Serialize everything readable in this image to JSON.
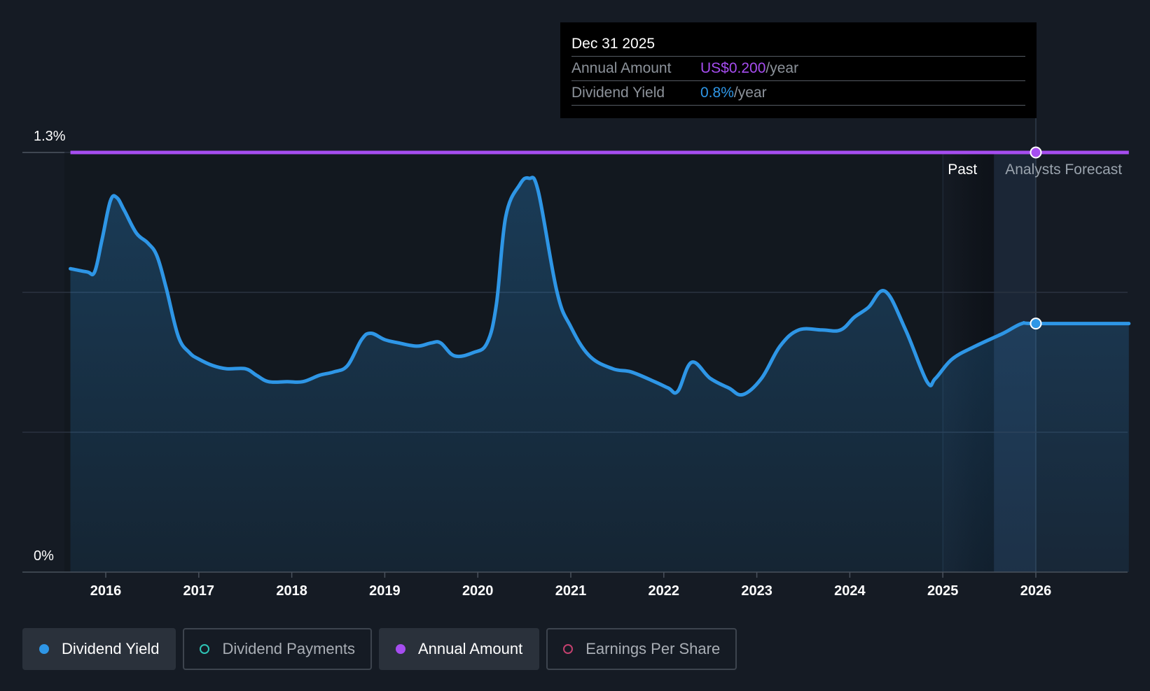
{
  "chart_data": {
    "type": "line",
    "y_axis": {
      "top_label": "1.3%",
      "bottom_label": "0%",
      "ylim": [
        0,
        1.3
      ]
    },
    "x_axis": {
      "tick_labels": [
        "2016",
        "2017",
        "2018",
        "2019",
        "2020",
        "2021",
        "2022",
        "2023",
        "2024",
        "2025",
        "2026"
      ]
    },
    "regions": {
      "past_label": "Past",
      "forecast_label": "Analysts Forecast",
      "forecast_start": 2025.55,
      "tooltip_date": 2026.0
    },
    "series": [
      {
        "name": "Dividend Yield",
        "color": "#2e96e6",
        "x": [
          2015.62,
          2015.8,
          2015.88,
          2015.96,
          2016.05,
          2016.12,
          2016.2,
          2016.33,
          2016.45,
          2016.55,
          2016.65,
          2016.78,
          2016.9,
          2017.0,
          2017.15,
          2017.3,
          2017.5,
          2017.62,
          2017.75,
          2017.95,
          2018.12,
          2018.3,
          2018.45,
          2018.6,
          2018.75,
          2018.85,
          2019.0,
          2019.15,
          2019.35,
          2019.5,
          2019.6,
          2019.75,
          2019.95,
          2020.1,
          2020.2,
          2020.3,
          2020.45,
          2020.55,
          2020.65,
          2020.85,
          2021.0,
          2021.2,
          2021.45,
          2021.65,
          2021.9,
          2022.05,
          2022.15,
          2022.3,
          2022.5,
          2022.7,
          2022.85,
          2023.05,
          2023.25,
          2023.45,
          2023.7,
          2023.9,
          2024.05,
          2024.2,
          2024.38,
          2024.6,
          2024.83,
          2024.92,
          2025.1,
          2025.35,
          2025.65,
          2025.85,
          2026.0,
          2027.0
        ],
        "values": [
          0.94,
          0.93,
          0.93,
          1.03,
          1.15,
          1.16,
          1.12,
          1.05,
          1.02,
          0.98,
          0.88,
          0.73,
          0.68,
          0.66,
          0.64,
          0.63,
          0.63,
          0.61,
          0.59,
          0.59,
          0.59,
          0.61,
          0.62,
          0.64,
          0.72,
          0.74,
          0.72,
          0.71,
          0.7,
          0.71,
          0.71,
          0.67,
          0.68,
          0.71,
          0.83,
          1.1,
          1.2,
          1.22,
          1.18,
          0.87,
          0.76,
          0.67,
          0.63,
          0.62,
          0.59,
          0.57,
          0.56,
          0.65,
          0.6,
          0.57,
          0.55,
          0.6,
          0.7,
          0.75,
          0.75,
          0.75,
          0.79,
          0.82,
          0.87,
          0.75,
          0.59,
          0.6,
          0.66,
          0.7,
          0.74,
          0.77,
          0.77,
          0.77
        ]
      },
      {
        "name": "Annual Amount",
        "color": "#a64df0",
        "x": [
          2015.62,
          2027.0
        ],
        "values": [
          1.3,
          1.3
        ]
      }
    ],
    "grid": true
  },
  "tooltip": {
    "date": "Dec 31 2025",
    "annual_amount_label": "Annual Amount",
    "annual_amount_value": "US$0.200",
    "annual_amount_unit": "/year",
    "dividend_yield_label": "Dividend Yield",
    "dividend_yield_value": "0.8%",
    "dividend_yield_unit": "/year"
  },
  "legend": {
    "items": [
      {
        "label": "Dividend Yield",
        "color": "#2e96e6",
        "active": true
      },
      {
        "label": "Dividend Payments",
        "color": "#2ec4b6",
        "active": false
      },
      {
        "label": "Annual Amount",
        "color": "#a64df0",
        "active": true
      },
      {
        "label": "Earnings Per Share",
        "color": "#c2406e",
        "active": false
      }
    ]
  },
  "colors": {
    "background": "#151b24",
    "past_region": "#10151c",
    "forecast_region": "#1c2838",
    "grid": "#2b3340",
    "axis": "#4a525d"
  }
}
